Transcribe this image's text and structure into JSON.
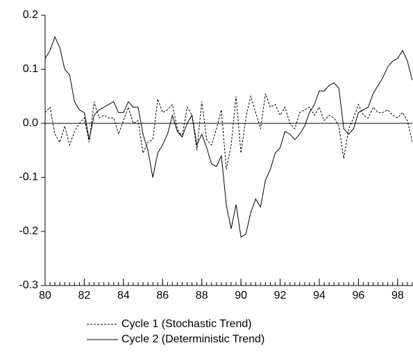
{
  "chart_data": {
    "type": "line",
    "x": [
      80,
      80.25,
      80.5,
      80.75,
      81,
      81.25,
      81.5,
      81.75,
      82,
      82.25,
      82.5,
      82.75,
      83,
      83.25,
      83.5,
      83.75,
      84,
      84.25,
      84.5,
      84.75,
      85,
      85.25,
      85.5,
      85.75,
      86,
      86.25,
      86.5,
      86.75,
      87,
      87.25,
      87.5,
      87.75,
      88,
      88.25,
      88.5,
      88.75,
      89,
      89.25,
      89.5,
      89.75,
      90,
      90.25,
      90.5,
      90.75,
      91,
      91.25,
      91.5,
      91.75,
      92,
      92.25,
      92.5,
      92.75,
      93,
      93.25,
      93.5,
      93.75,
      94,
      94.25,
      94.5,
      94.75,
      95,
      95.25,
      95.5,
      95.75,
      96,
      96.25,
      96.5,
      96.75,
      97,
      97.25,
      97.5,
      97.75,
      98,
      98.25,
      98.5,
      98.75
    ],
    "series": [
      {
        "name": "Cycle 1 (Stochastic Trend)",
        "color": "#000000",
        "dash": true,
        "values": [
          0.02,
          0.03,
          -0.02,
          -0.035,
          -0.005,
          -0.04,
          -0.015,
          0.0,
          0.01,
          -0.035,
          0.04,
          0.01,
          0.015,
          0.01,
          0.01,
          -0.02,
          0.005,
          0.03,
          0.0,
          0.005,
          -0.055,
          -0.035,
          -0.03,
          0.045,
          0.02,
          0.025,
          0.035,
          -0.01,
          -0.025,
          0.03,
          0.015,
          -0.05,
          0.04,
          -0.03,
          -0.04,
          -0.01,
          0.025,
          -0.085,
          -0.04,
          0.05,
          -0.055,
          0.01,
          0.05,
          0.02,
          -0.01,
          0.055,
          0.03,
          0.035,
          0.015,
          0.03,
          0.0,
          -0.01,
          0.02,
          0.025,
          0.03,
          0.015,
          0.03,
          0.005,
          0.015,
          0.01,
          -0.005,
          -0.065,
          -0.01,
          0.01,
          0.035,
          0.015,
          0.01,
          0.03,
          0.02,
          0.02,
          0.025,
          0.015,
          0.01,
          0.02,
          0.005,
          -0.035
        ]
      },
      {
        "name": "Cycle 2 (Deterministic Trend)",
        "color": "#000000",
        "dash": false,
        "values": [
          0.12,
          0.135,
          0.16,
          0.14,
          0.1,
          0.09,
          0.04,
          0.025,
          0.02,
          -0.03,
          0.015,
          0.025,
          0.03,
          0.035,
          0.04,
          0.02,
          0.02,
          0.04,
          0.03,
          0.03,
          -0.02,
          -0.05,
          -0.1,
          -0.055,
          -0.04,
          -0.02,
          0.015,
          -0.015,
          -0.025,
          0.0,
          0.015,
          -0.04,
          -0.02,
          -0.045,
          -0.075,
          -0.08,
          -0.06,
          -0.15,
          -0.195,
          -0.15,
          -0.21,
          -0.205,
          -0.165,
          -0.14,
          -0.155,
          -0.105,
          -0.085,
          -0.055,
          -0.045,
          -0.015,
          -0.02,
          -0.03,
          -0.02,
          -0.005,
          0.02,
          0.035,
          0.06,
          0.06,
          0.07,
          0.075,
          0.065,
          -0.01,
          -0.02,
          -0.01,
          0.02,
          0.025,
          0.03,
          0.055,
          0.07,
          0.085,
          0.105,
          0.115,
          0.12,
          0.135,
          0.115,
          0.08
        ]
      }
    ],
    "xlim": [
      80,
      98.75
    ],
    "xticks": [
      80,
      82,
      84,
      86,
      88,
      90,
      92,
      94,
      96,
      98
    ],
    "ylim": [
      -0.3,
      0.2
    ],
    "yticks": [
      0.2,
      0.1,
      {
        "value": 0,
        "label": "0.0"
      },
      -0.1,
      -0.2,
      -0.3
    ],
    "zero_line": true
  }
}
